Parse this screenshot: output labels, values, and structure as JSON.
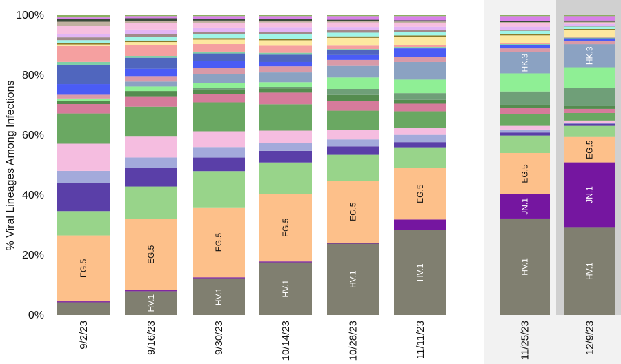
{
  "chart_data": {
    "type": "bar",
    "stacked": true,
    "normalized": true,
    "title": "",
    "xlabel": "",
    "ylabel": "% Viral Lineages Among Infections",
    "ylim": [
      0,
      100
    ],
    "yticks": [
      "0%",
      "20%",
      "40%",
      "60%",
      "80%",
      "100%"
    ],
    "ytick_values": [
      0,
      20,
      40,
      60,
      80,
      100
    ],
    "grid": false,
    "legend": "none",
    "categories": [
      "9/2/23",
      "9/16/23",
      "9/30/23",
      "10/14/23",
      "10/28/23",
      "11/11/23",
      "11/25/23",
      "12/9/23"
    ],
    "highlight": {
      "projection_region": [
        "11/25/23",
        "12/9/23"
      ],
      "projection_bg": "#f2f2f2",
      "latest_bg": "#d0d0d0",
      "latest_category": "12/9/23"
    },
    "series": [
      {
        "name": "HV.1",
        "label": "HV.1",
        "label_color": "#ffffff",
        "color": "#807f70",
        "values": [
          4.1,
          7.8,
          12.2,
          17.2,
          23.6,
          28.1,
          32.0,
          29.4
        ]
      },
      {
        "name": "JN.1",
        "label": "JN.1",
        "label_color": "#ffffff",
        "color": "#7516a0",
        "values": [
          0.3,
          0.3,
          0.3,
          0.3,
          0.3,
          3.5,
          8.0,
          21.6
        ]
      },
      {
        "name": "EG.5",
        "label": "EG.5",
        "label_color": "#111111",
        "color": "#fdc08a",
        "values": [
          21.1,
          23.3,
          23.2,
          22.0,
          20.5,
          17.0,
          13.7,
          8.5
        ]
      },
      {
        "name": "",
        "label": "",
        "color": "#98d48a",
        "values": [
          7.8,
          10.6,
          12.0,
          10.3,
          8.6,
          6.9,
          5.8,
          3.7
        ]
      },
      {
        "name": "",
        "label": "",
        "color": "#5a3fa8",
        "values": [
          9.0,
          6.0,
          4.5,
          3.8,
          2.8,
          1.7,
          1.0,
          0.7
        ]
      },
      {
        "name": "",
        "label": "",
        "color": "#a3aadb",
        "values": [
          3.9,
          3.5,
          3.5,
          2.6,
          2.3,
          2.4,
          1.0,
          0.3
        ]
      },
      {
        "name": "",
        "label": "",
        "color": "#f5bde0",
        "values": [
          8.7,
          6.8,
          5.2,
          4.0,
          3.2,
          2.2,
          1.2,
          0.8
        ]
      },
      {
        "name": "",
        "label": "",
        "color": "#6aa862",
        "values": [
          9.7,
          9.8,
          9.6,
          8.6,
          6.3,
          5.6,
          3.8,
          2.5
        ]
      },
      {
        "name": "",
        "label": "",
        "color": "#d67b9b",
        "values": [
          3.0,
          3.4,
          2.8,
          3.8,
          3.2,
          2.5,
          2.2,
          1.4
        ]
      },
      {
        "name": "",
        "label": "",
        "color": "#558c4f",
        "values": [
          1.1,
          1.7,
          1.5,
          1.4,
          2.0,
          1.3,
          1.0,
          0.9
        ]
      },
      {
        "name": "",
        "label": "",
        "color": "#6f9f78",
        "values": [
          0,
          0,
          0.6,
          0.5,
          2.0,
          2.2,
          4.4,
          6.0
        ]
      },
      {
        "name": "",
        "label": "",
        "color": "#8fef95",
        "values": [
          0.7,
          1.5,
          1.5,
          1.5,
          3.8,
          4.5,
          6.0,
          7.0
        ]
      },
      {
        "name": "",
        "label": "HK.3",
        "label_color": "#ffffff",
        "color": "#8ba2c2",
        "values": [
          0,
          1.6,
          3.0,
          3.2,
          3.8,
          5.8,
          7.0,
          7.7
        ]
      },
      {
        "name": "",
        "label": "",
        "color": "#d89aa8",
        "values": [
          1.2,
          1.8,
          2.0,
          2.0,
          2.0,
          1.8,
          1.3,
          1.0
        ]
      },
      {
        "name": "",
        "label": "",
        "color": "#4a5cf5",
        "values": [
          3.4,
          2.4,
          2.4,
          1.4,
          1.6,
          2.7,
          1.0,
          0.8
        ]
      },
      {
        "name": "",
        "label": "",
        "color": "#5066be",
        "values": [
          6.2,
          3.6,
          2.4,
          2.4,
          1.7,
          0.3,
          0.2,
          0.2
        ]
      },
      {
        "name": "",
        "label": "",
        "color": "#7fcfa8",
        "values": [
          0.9,
          0.6,
          0.6,
          0.6,
          0.3,
          0.2,
          0.2,
          0.2
        ]
      },
      {
        "name": "",
        "label": "",
        "color": "#f5a0a0",
        "values": [
          5.1,
          3.5,
          2.5,
          2.3,
          1.1,
          0.6,
          0.3,
          0.3
        ]
      },
      {
        "name": "",
        "label": "",
        "color": "#fde8a0",
        "values": [
          0.5,
          1.0,
          1.5,
          1.8,
          2.6,
          2.8,
          2.6,
          2.3
        ]
      },
      {
        "name": "",
        "label": "",
        "color": "#8a7a2a",
        "values": [
          0.5,
          0.5,
          0.5,
          0.5,
          0.5,
          0.4,
          0.3,
          0.3
        ]
      },
      {
        "name": "",
        "label": "",
        "color": "#a0f5e8",
        "values": [
          0.9,
          1.1,
          1.2,
          1.4,
          1.2,
          1.2,
          1.2,
          0.8
        ]
      },
      {
        "name": "",
        "label": "",
        "color": "#a08a8a",
        "values": [
          0.9,
          1.0,
          0.8,
          0.9,
          0.9,
          0.5,
          0.4,
          0.3
        ]
      },
      {
        "name": "",
        "label": "",
        "color": "#e2b5f5",
        "values": [
          1.1,
          1.5,
          1.5,
          1.5,
          1.0,
          1.2,
          1.0,
          0.5
        ]
      },
      {
        "name": "",
        "label": "",
        "color": "#f7bfe0",
        "values": [
          2.5,
          2.0,
          1.6,
          1.5,
          1.5,
          1.3,
          1.2,
          0.5
        ]
      },
      {
        "name": "",
        "label": "",
        "color": "#c0b0a0",
        "values": [
          1.4,
          0.9,
          0.7,
          0.6,
          0.5,
          0.4,
          0.3,
          0.3
        ]
      },
      {
        "name": "",
        "label": "",
        "color": "#3a4a3a",
        "values": [
          0.9,
          0.8,
          0.6,
          0.5,
          0.4,
          0.4,
          0.4,
          0.4
        ]
      },
      {
        "name": "",
        "label": "",
        "color": "#d880e8",
        "values": [
          0.5,
          0.7,
          0.9,
          1.0,
          1.2,
          1.4,
          1.6,
          1.5
        ]
      },
      {
        "name": "",
        "label": "",
        "color": "#8ab060",
        "values": [
          0.7,
          0.3,
          0.3,
          0.3,
          0.3,
          0.3,
          0.3,
          0.3
        ]
      }
    ]
  }
}
